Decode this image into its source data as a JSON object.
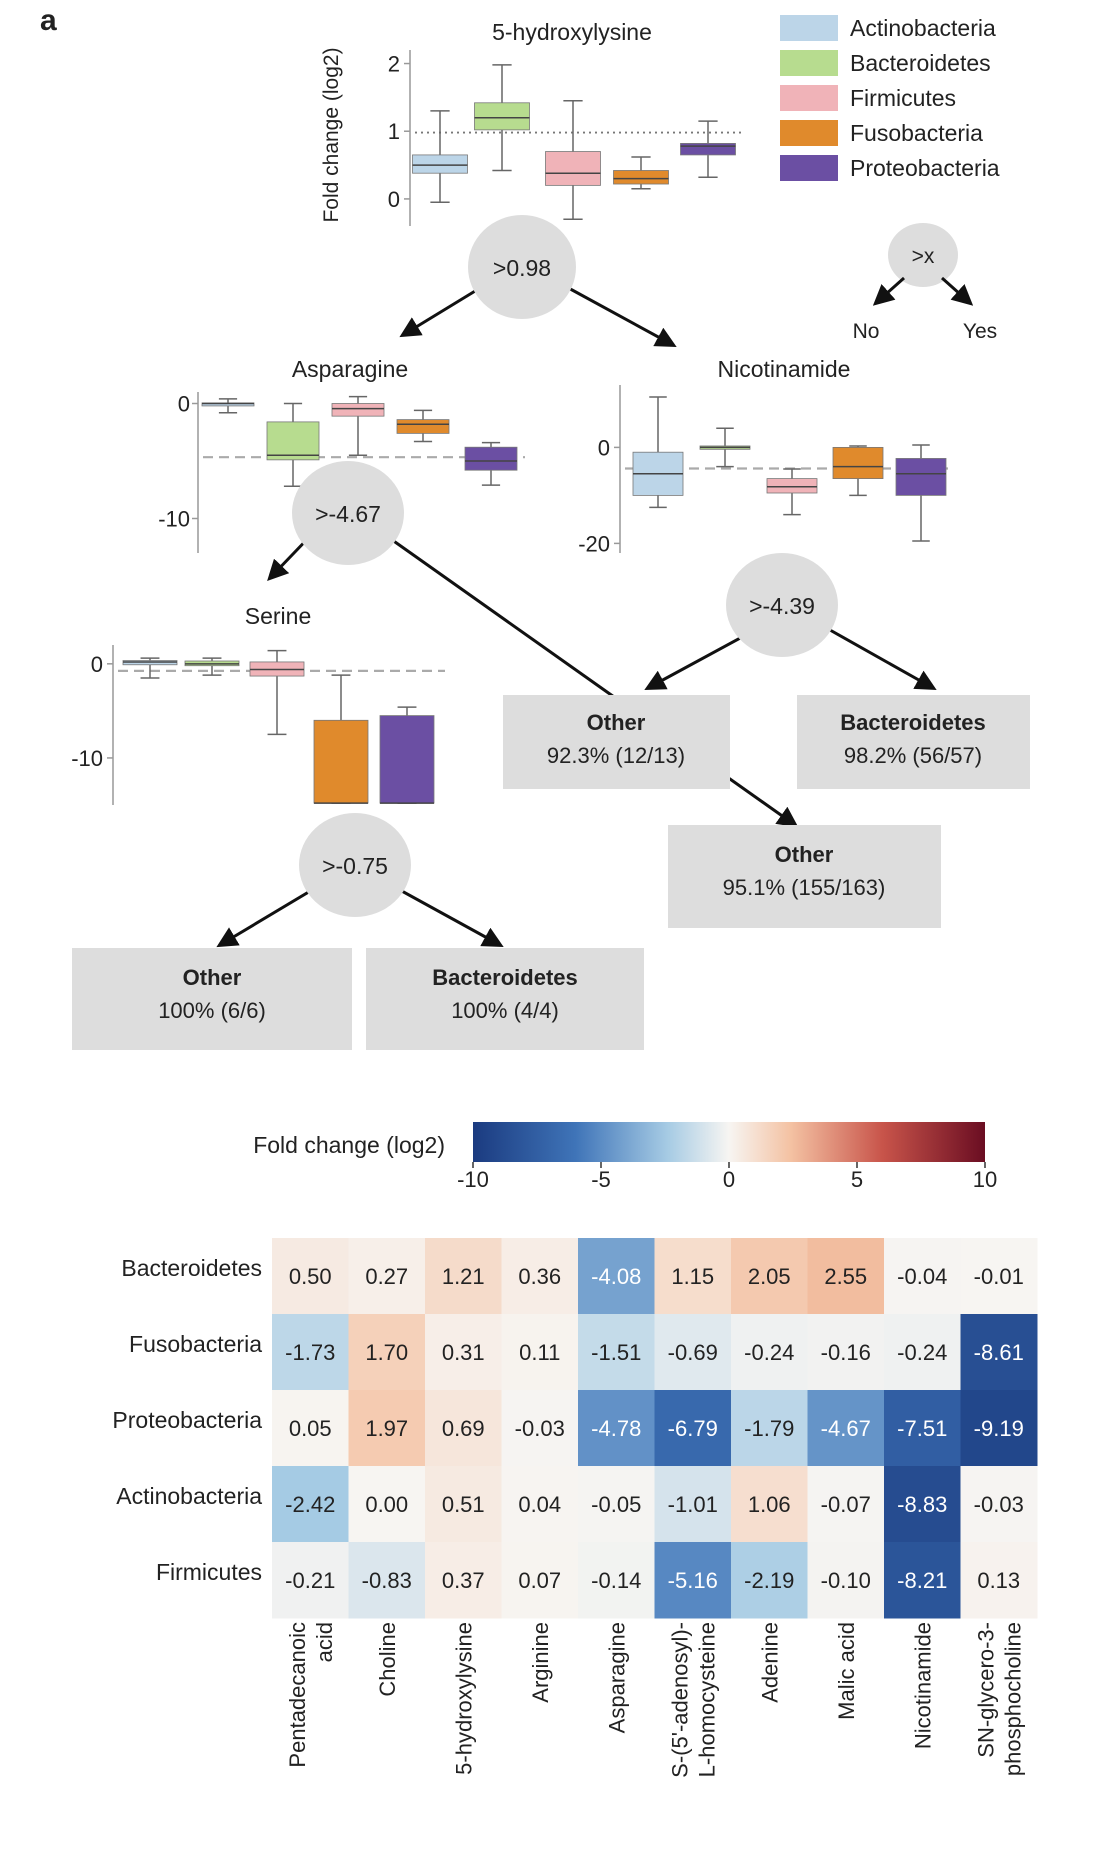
{
  "panel_label": "a",
  "legend": [
    {
      "name": "Actinobacteria",
      "color": "#bcd5e8"
    },
    {
      "name": "Bacteroidetes",
      "color": "#b7dc8f"
    },
    {
      "name": "Firmicutes",
      "color": "#f0b3b8"
    },
    {
      "name": "Fusobacteria",
      "color": "#e08a2c"
    },
    {
      "name": "Proteobacteria",
      "color": "#6b4fa3"
    }
  ],
  "key": {
    "node": ">x",
    "no": "No",
    "yes": "Yes"
  },
  "shared_ylabel": "Fold change (log2)",
  "chart_data": [
    {
      "type": "box",
      "title": "5-hydroxylysine",
      "ylabel": "Fold change (log2)",
      "ylim": [
        -0.4,
        2.2
      ],
      "yticks": [
        "2",
        "1",
        "0"
      ],
      "yticks_val": [
        2,
        1,
        0
      ],
      "ref_line": 0.98,
      "series": [
        {
          "name": "Actinobacteria",
          "q1": 0.38,
          "median": 0.5,
          "q3": 0.65,
          "whisker_low": -0.05,
          "whisker_high": 1.3
        },
        {
          "name": "Bacteroidetes",
          "q1": 1.02,
          "median": 1.2,
          "q3": 1.42,
          "whisker_low": 0.42,
          "whisker_high": 1.98
        },
        {
          "name": "Firmicutes",
          "q1": 0.2,
          "median": 0.38,
          "q3": 0.7,
          "whisker_low": -0.3,
          "whisker_high": 1.45
        },
        {
          "name": "Fusobacteria",
          "q1": 0.22,
          "median": 0.3,
          "q3": 0.42,
          "whisker_low": 0.15,
          "whisker_high": 0.62
        },
        {
          "name": "Proteobacteria",
          "q1": 0.65,
          "median": 0.78,
          "q3": 0.82,
          "whisker_low": 0.32,
          "whisker_high": 1.15
        }
      ]
    },
    {
      "type": "box",
      "title": "Asparagine",
      "ylim": [
        -13,
        1
      ],
      "yticks": [
        "0",
        "-10"
      ],
      "yticks_val": [
        0,
        -10
      ],
      "ref_line": -4.67,
      "series": [
        {
          "name": "Actinobacteria",
          "q1": -0.15,
          "median": 0,
          "q3": 0.05,
          "whisker_low": -0.8,
          "whisker_high": 0.4
        },
        {
          "name": "Bacteroidetes",
          "q1": -4.9,
          "median": -4.5,
          "q3": -1.6,
          "whisker_low": -7.2,
          "whisker_high": 0
        },
        {
          "name": "Firmicutes",
          "q1": -1.1,
          "median": -0.45,
          "q3": 0,
          "whisker_low": -4.5,
          "whisker_high": 0.6
        },
        {
          "name": "Fusobacteria",
          "q1": -2.6,
          "median": -1.8,
          "q3": -1.4,
          "whisker_low": -3.3,
          "whisker_high": -0.6
        },
        {
          "name": "Proteobacteria",
          "q1": -5.8,
          "median": -5.0,
          "q3": -3.8,
          "whisker_low": -7.1,
          "whisker_high": -3.4
        }
      ]
    },
    {
      "type": "box",
      "title": "Nicotinamide",
      "ylim": [
        -22,
        13
      ],
      "yticks": [
        "0",
        "-20"
      ],
      "yticks_val": [
        0,
        -20
      ],
      "ref_line": -4.39,
      "series": [
        {
          "name": "Actinobacteria",
          "q1": -10,
          "median": -5.5,
          "q3": -1,
          "whisker_low": -12.5,
          "whisker_high": 10.5
        },
        {
          "name": "Bacteroidetes",
          "q1": -0.4,
          "median": 0,
          "q3": 0.3,
          "whisker_low": -4,
          "whisker_high": 4
        },
        {
          "name": "Firmicutes",
          "q1": -9.5,
          "median": -8.2,
          "q3": -6.5,
          "whisker_low": -14,
          "whisker_high": -4.5
        },
        {
          "name": "Fusobacteria",
          "q1": -6.5,
          "median": -4,
          "q3": 0,
          "whisker_low": -10,
          "whisker_high": 0.3
        },
        {
          "name": "Proteobacteria",
          "q1": -10,
          "median": -5.5,
          "q3": -2.3,
          "whisker_low": -19.5,
          "whisker_high": 0.5
        }
      ]
    },
    {
      "type": "box",
      "title": "Serine",
      "ylim": [
        -15,
        2
      ],
      "yticks": [
        "0",
        "-10"
      ],
      "yticks_val": [
        0,
        -10
      ],
      "ref_line": -0.75,
      "series": [
        {
          "name": "Actinobacteria",
          "q1": -0.1,
          "median": 0.2,
          "q3": 0.35,
          "whisker_low": -1.5,
          "whisker_high": 0.6
        },
        {
          "name": "Bacteroidetes",
          "q1": -0.2,
          "median": 0,
          "q3": 0.3,
          "whisker_low": -1.2,
          "whisker_high": 0.6
        },
        {
          "name": "Firmicutes",
          "q1": -1.3,
          "median": -0.6,
          "q3": 0.2,
          "whisker_low": -7.5,
          "whisker_high": 1.4
        },
        {
          "name": "Fusobacteria",
          "q1": -14.8,
          "median": -14.8,
          "q3": -6.0,
          "whisker_low": -14.8,
          "whisker_high": -1.2
        },
        {
          "name": "Proteobacteria",
          "q1": -14.8,
          "median": -14.8,
          "q3": -5.5,
          "whisker_low": -14.8,
          "whisker_high": -4.6
        }
      ]
    },
    {
      "type": "heatmap",
      "colorbar_label": "Fold change (log2)",
      "colorbar_ticks": [
        "-10",
        "-5",
        "0",
        "5",
        "10"
      ],
      "colorbar_range": [
        -10,
        10
      ],
      "rows": [
        "Bacteroidetes",
        "Fusobacteria",
        "Proteobacteria",
        "Actinobacteria",
        "Firmicutes"
      ],
      "columns": [
        [
          "Pentadecanoic",
          "acid"
        ],
        [
          "Choline"
        ],
        [
          "5-hydroxylysine"
        ],
        [
          "Arginine"
        ],
        [
          "Asparagine"
        ],
        [
          "S-(5'-adenosyl)-",
          "L-homocysteine"
        ],
        [
          "Adenine"
        ],
        [
          "Malic acid"
        ],
        [
          "Nicotinamide"
        ],
        [
          "SN-glycero-3-",
          "phosphocholine"
        ]
      ],
      "values": [
        [
          0.5,
          0.27,
          1.21,
          0.36,
          -4.08,
          1.15,
          2.05,
          2.55,
          -0.04,
          -0.01
        ],
        [
          -1.73,
          1.7,
          0.31,
          0.11,
          -1.51,
          -0.69,
          -0.24,
          -0.16,
          -0.24,
          -8.61
        ],
        [
          0.05,
          1.97,
          0.69,
          -0.03,
          -4.78,
          -6.79,
          -1.79,
          -4.67,
          -7.51,
          -9.19
        ],
        [
          -2.42,
          0.0,
          0.51,
          0.04,
          -0.05,
          -1.01,
          1.06,
          -0.07,
          -8.83,
          -0.03
        ],
        [
          -0.21,
          -0.83,
          0.37,
          0.07,
          -0.14,
          -5.16,
          -2.19,
          -0.1,
          -8.21,
          0.13
        ]
      ]
    }
  ],
  "tree": {
    "nodes": [
      ">0.98",
      ">-4.67",
      ">-4.39",
      ">-0.75"
    ],
    "leaves": [
      {
        "title": "Other",
        "value": "92.3% (12/13)"
      },
      {
        "title": "Bacteroidetes",
        "value": "98.2% (56/57)"
      },
      {
        "title": "Other",
        "value": "95.1% (155/163)"
      },
      {
        "title": "Other",
        "value": "100% (6/6)"
      },
      {
        "title": "Bacteroidetes",
        "value": "100% (4/4)"
      }
    ]
  }
}
